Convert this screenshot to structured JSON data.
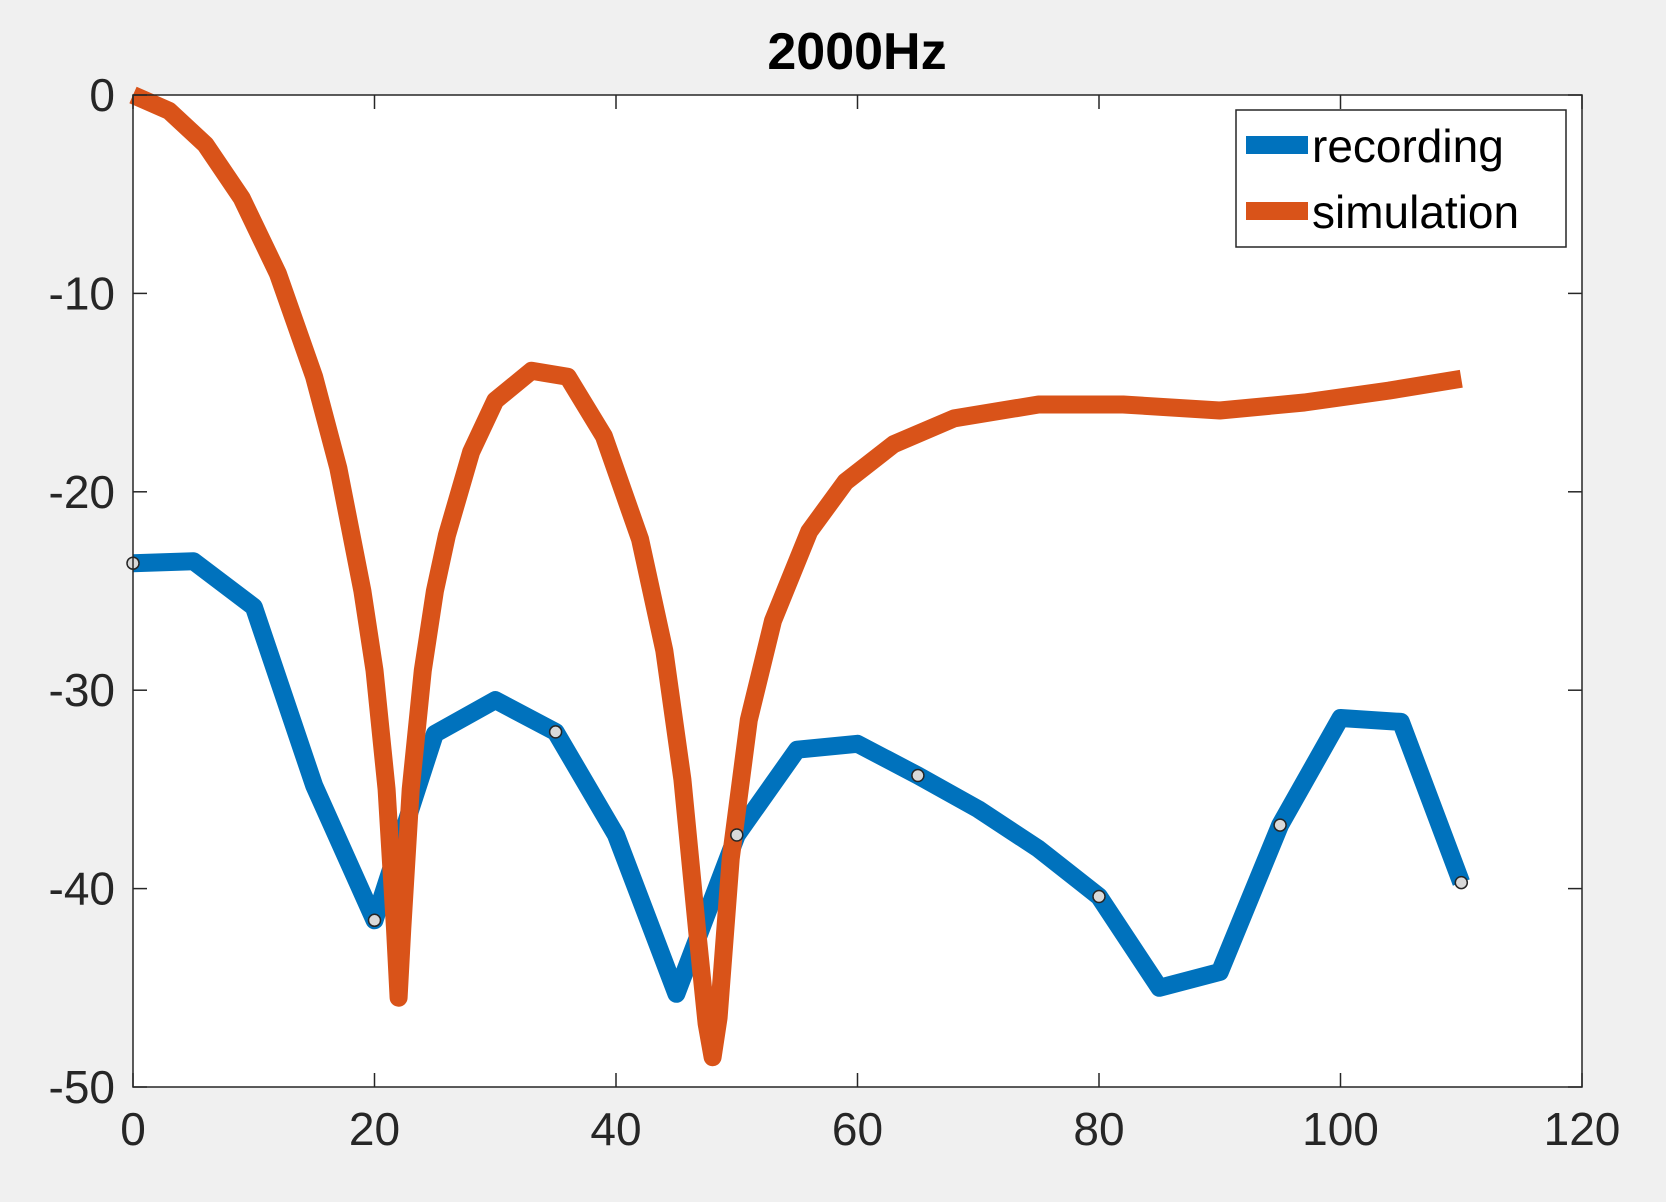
{
  "chart_data": {
    "type": "line",
    "title": "2000Hz",
    "xlabel": "",
    "ylabel": "",
    "xlim": [
      0,
      120
    ],
    "ylim": [
      -50,
      0
    ],
    "xticks": [
      0,
      20,
      40,
      60,
      80,
      100,
      120
    ],
    "yticks": [
      0,
      -10,
      -20,
      -30,
      -40,
      -50
    ],
    "grid": false,
    "legend_position": "top-right",
    "series": [
      {
        "name": "recording",
        "color": "#0072bd",
        "x": [
          0,
          5,
          10,
          15,
          20,
          25,
          30,
          35,
          40,
          45,
          50,
          55,
          60,
          65,
          70,
          75,
          80,
          85,
          90,
          95,
          100,
          105,
          110
        ],
        "y": [
          -23.6,
          -23.5,
          -25.8,
          -34.8,
          -41.6,
          -32.2,
          -30.5,
          -32.1,
          -37.3,
          -45.3,
          -37.3,
          -33.0,
          -32.7,
          -34.3,
          -36.0,
          -38.0,
          -40.4,
          -45.0,
          -44.2,
          -36.8,
          -31.4,
          -31.6,
          -39.7
        ]
      },
      {
        "name": "simulation",
        "color": "#d95319",
        "x": [
          0,
          3,
          6,
          9,
          12,
          15,
          17,
          19,
          20,
          21,
          21.7,
          22,
          22.3,
          23,
          24,
          25,
          26,
          28,
          30,
          33,
          36,
          39,
          42,
          44,
          45.5,
          46.7,
          47.5,
          48,
          48.5,
          49.5,
          51,
          53,
          56,
          59,
          63,
          68,
          75,
          82,
          90,
          97,
          104,
          110
        ],
        "y": [
          0,
          -0.8,
          -2.5,
          -5.2,
          -9.0,
          -14.2,
          -18.8,
          -25.0,
          -29.0,
          -35.0,
          -42.0,
          -45.5,
          -42.0,
          -35.0,
          -29.0,
          -25.0,
          -22.2,
          -18.0,
          -15.4,
          -13.9,
          -14.2,
          -17.2,
          -22.4,
          -28.0,
          -34.5,
          -42.0,
          -46.8,
          -48.5,
          -46.5,
          -38.5,
          -31.5,
          -26.5,
          -22.0,
          -19.5,
          -17.6,
          -16.3,
          -15.6,
          -15.6,
          -15.9,
          -15.5,
          -14.9,
          -14.3
        ]
      }
    ],
    "markers": {
      "x": [
        0,
        20,
        35,
        50,
        65,
        80,
        95,
        110
      ],
      "y": [
        -23.6,
        -41.6,
        -32.1,
        -37.3,
        -34.3,
        -40.4,
        -36.8,
        -39.7
      ]
    }
  }
}
